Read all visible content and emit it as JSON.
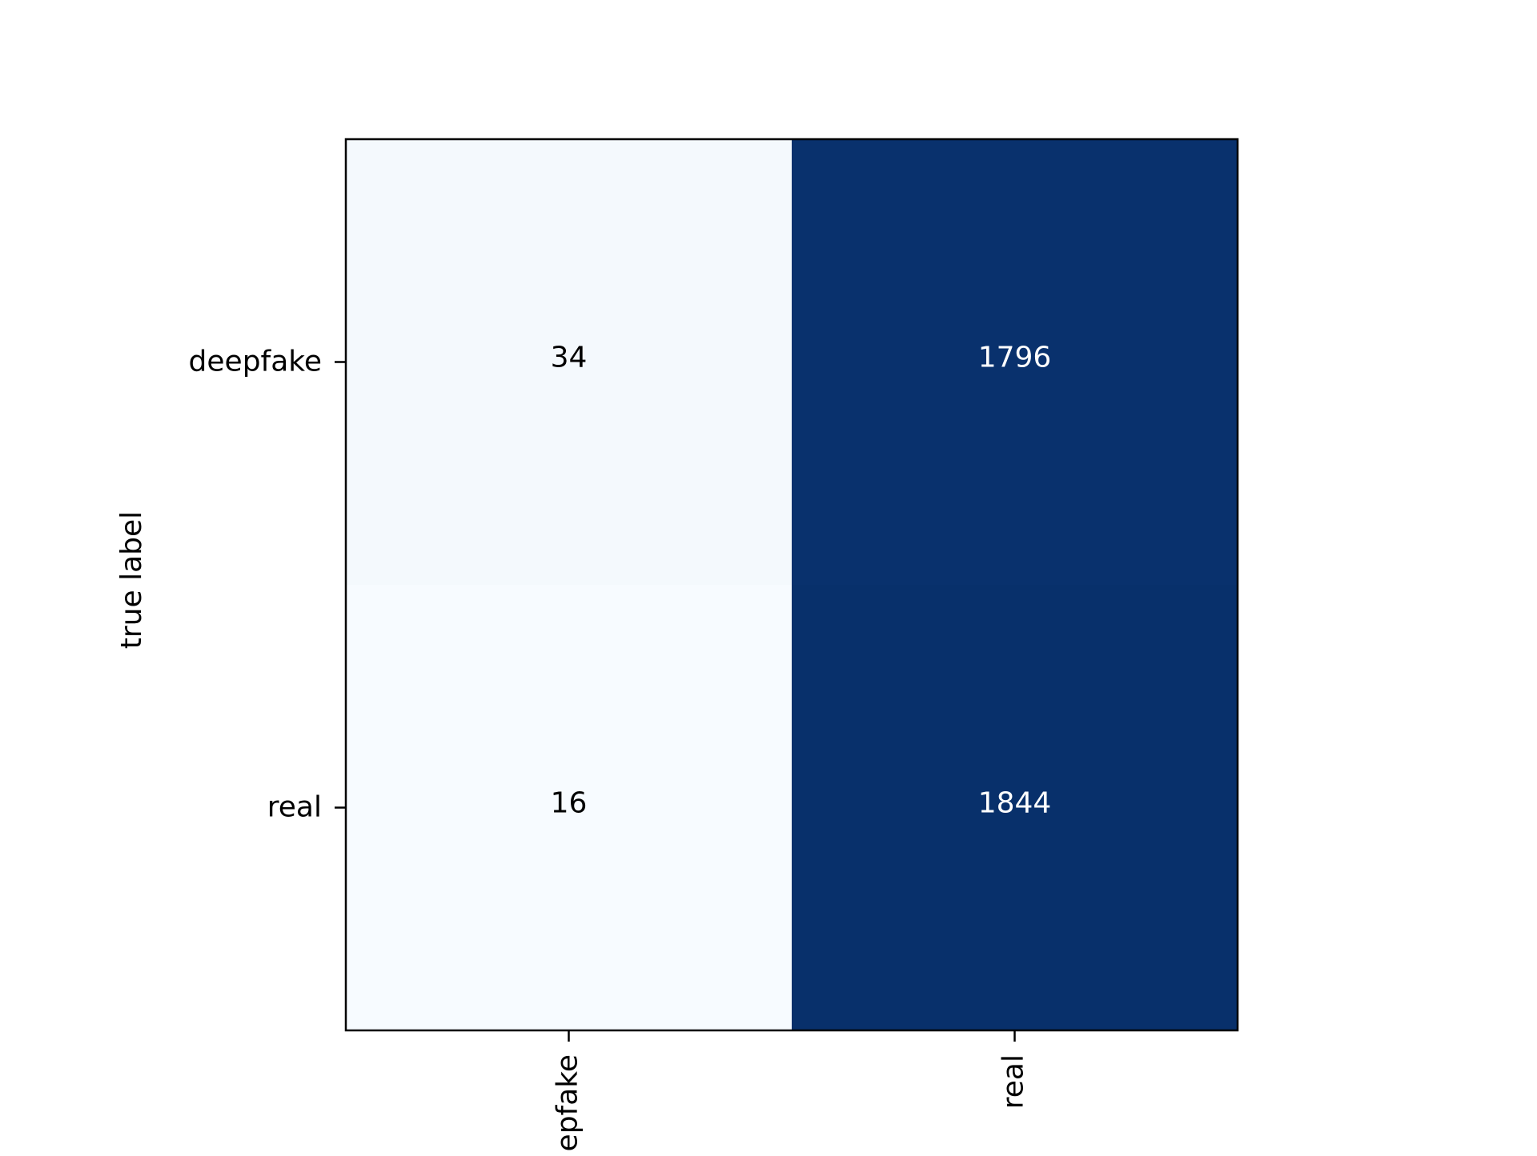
{
  "chart_data": {
    "type": "heatmap",
    "title": "",
    "xlabel": "",
    "ylabel": "true label",
    "rows": [
      "deepfake",
      "real"
    ],
    "columns": [
      "deepfake",
      "real"
    ],
    "values": [
      [
        34,
        1796
      ],
      [
        16,
        1844
      ]
    ],
    "colormap": "Blues",
    "colors": {
      "cell_low": "#f4f8fd",
      "cell_low_alt": "#f7fbff",
      "cell_high_alt": "#0a3572",
      "cell_high": "#08306b",
      "dark_text": "#000000",
      "light_text": "#ffffff",
      "axis": "#000000"
    },
    "grid": false,
    "legend": "none"
  }
}
